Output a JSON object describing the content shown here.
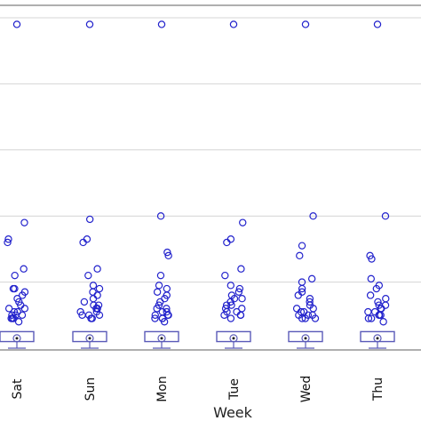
{
  "chart_data": {
    "type": "box",
    "xlabel": "Week",
    "ylabel": "",
    "categories": [
      "Sat",
      "Sun",
      "Mon",
      "Tue",
      "Wed",
      "Thu"
    ],
    "ylim": [
      0,
      100
    ],
    "grid": true,
    "colors": {
      "points": "#2222cc",
      "box": "#5a5ab8",
      "grid": "#d4d4d4"
    },
    "boxes": [
      {
        "category": "Sat",
        "whisker_low": 0,
        "q1": 2,
        "median": 3,
        "q3": 5,
        "whisker_high": 5
      },
      {
        "category": "Sun",
        "whisker_low": 0,
        "q1": 2,
        "median": 3,
        "q3": 5,
        "whisker_high": 5
      },
      {
        "category": "Mon",
        "whisker_low": 0,
        "q1": 2,
        "median": 3,
        "q3": 5,
        "whisker_high": 5
      },
      {
        "category": "Tue",
        "whisker_low": 0,
        "q1": 2,
        "median": 3,
        "q3": 5,
        "whisker_high": 5
      },
      {
        "category": "Wed",
        "whisker_low": 0,
        "q1": 2,
        "median": 3,
        "q3": 5,
        "whisker_high": 5
      },
      {
        "category": "Thu",
        "whisker_low": 0,
        "q1": 2,
        "median": 3,
        "q3": 5,
        "whisker_high": 5
      }
    ],
    "points": [
      {
        "category": "Sat",
        "values": [
          98,
          38,
          33,
          32,
          24,
          22,
          18,
          18,
          17,
          16,
          15,
          14,
          13,
          12,
          12,
          11,
          11,
          10,
          10,
          10,
          9,
          9,
          9,
          8
        ]
      },
      {
        "category": "Sun",
        "values": [
          98,
          39,
          33,
          32,
          24,
          22,
          19,
          18,
          17,
          16,
          15,
          14,
          13,
          13,
          12,
          12,
          11,
          11,
          10,
          10,
          10,
          9,
          9
        ]
      },
      {
        "category": "Mon",
        "values": [
          98,
          40,
          29,
          28,
          22,
          19,
          18,
          17,
          16,
          15,
          14,
          13,
          12,
          12,
          11,
          11,
          10,
          10,
          10,
          9,
          9,
          9,
          8
        ]
      },
      {
        "category": "Tue",
        "values": [
          98,
          38,
          33,
          32,
          24,
          22,
          19,
          18,
          17,
          16,
          15,
          15,
          14,
          13,
          13,
          12,
          12,
          11,
          11,
          10,
          10,
          10,
          9
        ]
      },
      {
        "category": "Wed",
        "values": [
          98,
          40,
          31,
          28,
          21,
          20,
          18,
          17,
          16,
          15,
          14,
          13,
          12,
          12,
          11,
          11,
          10,
          10,
          10,
          9,
          9,
          9
        ]
      },
      {
        "category": "Thu",
        "values": [
          98,
          40,
          28,
          27,
          21,
          19,
          18,
          16,
          15,
          14,
          13,
          13,
          12,
          12,
          11,
          11,
          10,
          10,
          10,
          9,
          9,
          8
        ]
      }
    ]
  }
}
